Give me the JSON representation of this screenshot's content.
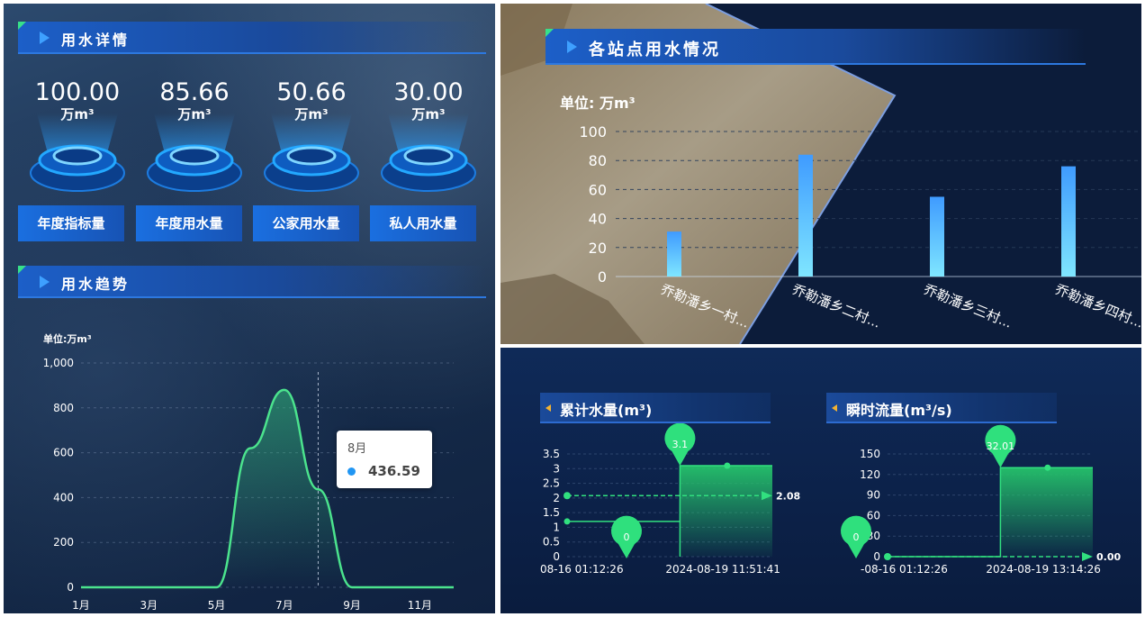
{
  "left": {
    "detail": {
      "title": "用水详情",
      "stats": [
        {
          "value": "100.00",
          "unit": "万m³",
          "label": "年度指标量"
        },
        {
          "value": "85.66",
          "unit": "万m³",
          "label": "年度用水量"
        },
        {
          "value": "50.66",
          "unit": "万m³",
          "label": "公家用水量"
        },
        {
          "value": "30.00",
          "unit": "万m³",
          "label": "私人用水量"
        }
      ]
    },
    "trend": {
      "title": "用水趋势",
      "tooltip": {
        "month": "8月",
        "value": "436.59"
      }
    }
  },
  "chart_data": [
    {
      "type": "area",
      "ylabel": "单位:万m³",
      "ylim": [
        0,
        1000
      ],
      "yticks": [
        "0",
        "200",
        "400",
        "600",
        "800",
        "1,000"
      ],
      "xticks": [
        "1月",
        "3月",
        "5月",
        "7月",
        "9月",
        "11月"
      ],
      "x": [
        1,
        2,
        3,
        4,
        5,
        6,
        7,
        8,
        9,
        10,
        11,
        12
      ],
      "values": [
        0,
        0,
        0,
        0,
        0,
        620,
        880,
        436.59,
        0,
        0,
        0,
        0
      ],
      "colors": {
        "line": "#4be38d"
      }
    },
    {
      "type": "bar",
      "title": "各站点用水情况",
      "ylabel": "单位: 万m³",
      "ylim": [
        0,
        100
      ],
      "yticks": [
        "0",
        "20",
        "40",
        "60",
        "80",
        "100"
      ],
      "categories": [
        "乔勒潘乡一村...",
        "乔勒潘乡二村...",
        "乔勒潘乡三村...",
        "乔勒潘乡四村..."
      ],
      "values": [
        31,
        84,
        55,
        76
      ],
      "colors": {
        "bar_top": "#3f9bff",
        "bar_bottom": "#7fe6ff"
      }
    },
    {
      "type": "line",
      "title": "累计水量(m³)",
      "ylim": [
        0,
        3.5
      ],
      "yticks": [
        "0",
        "0.5",
        "1",
        "1.5",
        "2",
        "2.5",
        "3",
        "3.5"
      ],
      "xticks": [
        "08-16 01:12:26",
        "2024-08-19 11:51:41"
      ],
      "pins": [
        "3.1",
        "0"
      ],
      "end_label": "2.08"
    },
    {
      "type": "line",
      "title": "瞬时流量(m³/s)",
      "ylim": [
        0,
        150
      ],
      "yticks": [
        "0",
        "30",
        "60",
        "90",
        "120",
        "150"
      ],
      "xticks": [
        "-08-16 01:12:26",
        "2024-08-19 13:14:26"
      ],
      "pins": [
        "32.01",
        "0"
      ],
      "end_label": "0.00"
    }
  ]
}
